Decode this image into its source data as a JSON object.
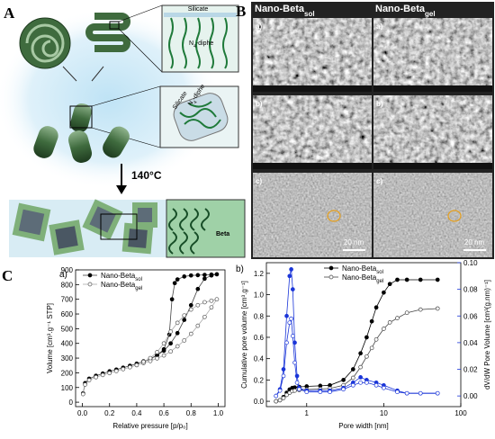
{
  "panel_a": {
    "label": "A",
    "top_box": {
      "layer": "Silicate",
      "sda": "N",
      "sda_sub": "4",
      "sda_rest": "-diphe"
    },
    "mid_box": {
      "layer": "Silicate",
      "sda": "N",
      "sda_sub": "4",
      "sda_rest": "-diphe"
    },
    "temperature": "140°C",
    "product": "Beta"
  },
  "panel_b": {
    "label": "B",
    "columns": [
      {
        "name": "Nano-Beta",
        "sub": "sol",
        "rows": [
          "a)",
          "b)",
          "c)"
        ],
        "scale_bar": "20 nm"
      },
      {
        "name": "Nano-Beta",
        "sub": "gel",
        "rows": [
          "a)",
          "b)",
          "c)"
        ],
        "scale_bar": "20 nm"
      }
    ]
  },
  "panel_c": {
    "label": "C"
  },
  "chart_data": [
    {
      "type": "line",
      "panel_label": "a)",
      "x_label": "Relative pressure [p/p₀]",
      "y_label": "Volume [cm³.g⁻¹ STP]",
      "xlim": [
        -0.05,
        1.05
      ],
      "ylim": [
        -30,
        900
      ],
      "xticks": [
        {
          "value": 0,
          "label": "0.0"
        },
        0.2,
        0.4,
        0.6,
        0.8,
        {
          "value": 1,
          "label": "1.0"
        }
      ],
      "yticks": [
        0,
        100,
        200,
        300,
        400,
        500,
        600,
        700,
        800,
        900
      ],
      "series": [
        {
          "name": "Nano-Beta",
          "name_sub": "sol",
          "color": "#000000",
          "line_color": "#444444",
          "marker": "filled",
          "x": [
            0.005,
            0.02,
            0.05,
            0.1,
            0.15,
            0.2,
            0.25,
            0.3,
            0.35,
            0.4,
            0.45,
            0.5,
            0.55,
            0.6,
            0.65,
            0.7,
            0.75,
            0.8,
            0.85,
            0.9,
            0.95,
            0.99,
            0.95,
            0.9,
            0.85,
            0.8,
            0.75,
            0.7,
            0.68,
            0.66,
            0.64,
            0.6,
            0.55,
            0.5,
            0.45
          ],
          "values": [
            60,
            130,
            160,
            180,
            195,
            210,
            222,
            235,
            248,
            262,
            278,
            296,
            320,
            350,
            400,
            470,
            560,
            660,
            770,
            840,
            862,
            870,
            868,
            866,
            864,
            862,
            855,
            835,
            810,
            700,
            460,
            360,
            318,
            294,
            275
          ]
        },
        {
          "name": "Nano-Beta",
          "name_sub": "gel",
          "color": "#555555",
          "line_color": "#aaaaaa",
          "marker": "open",
          "x": [
            0.005,
            0.02,
            0.05,
            0.1,
            0.15,
            0.2,
            0.25,
            0.3,
            0.35,
            0.4,
            0.45,
            0.5,
            0.55,
            0.6,
            0.65,
            0.7,
            0.75,
            0.8,
            0.85,
            0.9,
            0.95,
            0.99,
            0.95,
            0.9,
            0.85,
            0.8,
            0.75,
            0.7,
            0.65,
            0.6,
            0.55,
            0.5,
            0.45
          ],
          "values": [
            55,
            120,
            150,
            170,
            185,
            198,
            212,
            225,
            238,
            252,
            266,
            280,
            298,
            318,
            345,
            380,
            420,
            465,
            520,
            580,
            645,
            700,
            690,
            680,
            660,
            630,
            590,
            540,
            480,
            400,
            340,
            300,
            275
          ]
        }
      ]
    },
    {
      "type": "line",
      "panel_label": "b)",
      "log_x": true,
      "x_label": "Pore width [nm]",
      "y_label": "Cumulative pore volume [cm³.g⁻¹]",
      "y2_label": "dV/dW Pore Volume [cm³(g.nm)⁻¹]",
      "xlim": [
        0.3,
        100
      ],
      "ylim": [
        -0.05,
        1.3
      ],
      "y2lim": [
        -0.008,
        0.1
      ],
      "xticks": [
        1,
        10,
        100
      ],
      "yticks": [
        {
          "value": 0,
          "label": "0.0"
        },
        0.2,
        0.4,
        0.6,
        0.8,
        {
          "value": 1,
          "label": "1.0"
        },
        1.2
      ],
      "y2ticks": [
        {
          "value": 0,
          "label": "0.00"
        },
        0.02,
        0.04,
        0.06,
        0.08,
        {
          "value": 0.1,
          "label": "0.10"
        }
      ],
      "series": [
        {
          "name": "Nano-Beta",
          "name_sub": "sol",
          "color": "#000000",
          "line_color": "#000000",
          "marker": "filled",
          "x": [
            0.4,
            0.45,
            0.5,
            0.55,
            0.6,
            0.65,
            0.7,
            0.8,
            1,
            1.5,
            2,
            3,
            4,
            5,
            6,
            7,
            8,
            10,
            12,
            15,
            20,
            30,
            50
          ],
          "values": [
            0,
            0.01,
            0.04,
            0.08,
            0.11,
            0.125,
            0.13,
            0.135,
            0.14,
            0.145,
            0.15,
            0.2,
            0.3,
            0.45,
            0.6,
            0.75,
            0.88,
            1.02,
            1.1,
            1.14,
            1.14,
            1.14,
            1.14
          ]
        },
        {
          "name": "Nano-Beta",
          "name_sub": "gel",
          "color": "#444444",
          "line_color": "#444444",
          "marker": "open",
          "x": [
            0.4,
            0.45,
            0.5,
            0.55,
            0.6,
            0.65,
            0.7,
            0.8,
            1,
            1.5,
            2,
            3,
            4,
            5,
            6,
            7,
            8,
            10,
            12,
            15,
            20,
            30,
            50
          ],
          "values": [
            0,
            0.01,
            0.03,
            0.06,
            0.08,
            0.095,
            0.1,
            0.105,
            0.11,
            0.115,
            0.12,
            0.15,
            0.22,
            0.32,
            0.42,
            0.5,
            0.58,
            0.68,
            0.74,
            0.78,
            0.83,
            0.86,
            0.87
          ]
        },
        {
          "axis": "y2",
          "color": "#1a35d8",
          "line_color": "#1a35d8",
          "marker": "filled",
          "x": [
            0.4,
            0.45,
            0.5,
            0.55,
            0.6,
            0.63,
            0.66,
            0.7,
            0.75,
            0.8,
            1,
            1.5,
            2,
            3,
            4,
            5,
            6,
            8,
            10,
            15,
            20,
            30,
            50
          ],
          "values": [
            0,
            0.005,
            0.02,
            0.06,
            0.09,
            0.095,
            0.08,
            0.04,
            0.015,
            0.006,
            0.004,
            0.004,
            0.004,
            0.006,
            0.01,
            0.014,
            0.012,
            0.01,
            0.008,
            0.004,
            0.002,
            0.002,
            0.002
          ]
        },
        {
          "axis": "y2",
          "color": "#1a35d8",
          "line_color": "#1a35d8",
          "marker": "open",
          "x": [
            0.4,
            0.45,
            0.5,
            0.55,
            0.6,
            0.63,
            0.66,
            0.7,
            0.75,
            0.8,
            1,
            1.5,
            2,
            3,
            4,
            5,
            6,
            8,
            10,
            15,
            20,
            30,
            50
          ],
          "values": [
            0,
            0.004,
            0.015,
            0.04,
            0.055,
            0.058,
            0.045,
            0.025,
            0.01,
            0.005,
            0.003,
            0.003,
            0.003,
            0.005,
            0.008,
            0.01,
            0.01,
            0.008,
            0.006,
            0.003,
            0.002,
            0.002,
            0.002
          ]
        }
      ]
    }
  ]
}
